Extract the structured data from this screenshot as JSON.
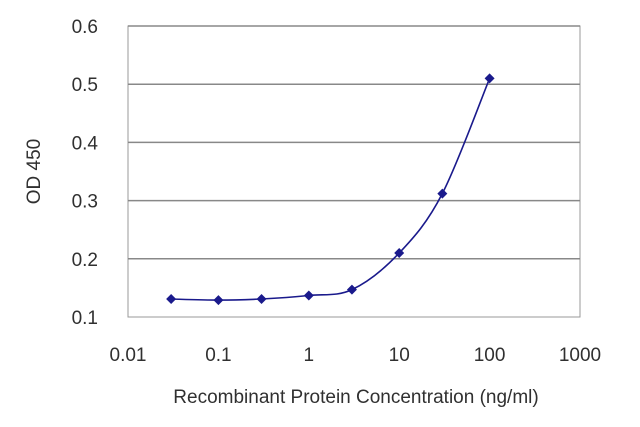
{
  "chart_data": {
    "type": "line",
    "title": "",
    "xlabel": "Recombinant Protein Concentration (ng/ml)",
    "ylabel": "OD 450",
    "x_scale": "log",
    "xlim": [
      0.01,
      1000
    ],
    "ylim": [
      0.1,
      0.6
    ],
    "x_ticks": [
      0.01,
      0.1,
      1,
      10,
      100,
      1000
    ],
    "x_tick_labels": [
      "0.01",
      "0.1",
      "1",
      "10",
      "100",
      "1000"
    ],
    "y_ticks": [
      0.1,
      0.2,
      0.3,
      0.4,
      0.5,
      0.6
    ],
    "y_tick_labels": [
      "0.1",
      "0.2",
      "0.3",
      "0.4",
      "0.5",
      "0.6"
    ],
    "grid": "horizontal",
    "legend": "none",
    "colors": {
      "series": "#1a1a8c",
      "gridline": "#888888",
      "axis": "#999999",
      "text": "#303030"
    },
    "series": [
      {
        "x": [
          0.03,
          0.1,
          0.3,
          1,
          3,
          10,
          30,
          100
        ],
        "y": [
          0.131,
          0.129,
          0.131,
          0.137,
          0.147,
          0.21,
          0.312,
          0.51
        ]
      }
    ]
  }
}
